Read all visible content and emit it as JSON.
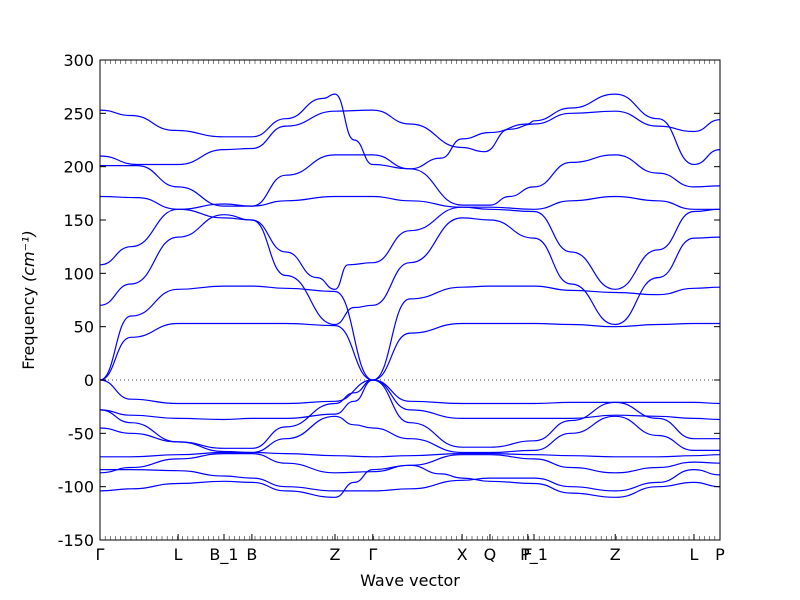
{
  "chart_data": {
    "type": "line",
    "title": "",
    "xlabel": "Wave vector",
    "ylabel": "Frequency ",
    "ylabel_unit": "(cm⁻¹)",
    "ylim": [
      -150,
      300
    ],
    "yticks": [
      300,
      250,
      200,
      150,
      100,
      50,
      0,
      -50,
      -100,
      -150
    ],
    "xlim": [
      0,
      1
    ],
    "xticks": [
      {
        "label": "Γ",
        "x": 0.0
      },
      {
        "label": "L",
        "x": 0.126
      },
      {
        "label": "B_1",
        "x": 0.2
      },
      {
        "label": "B",
        "x": 0.245
      },
      {
        "label": "Z",
        "x": 0.379
      },
      {
        "label": "Γ",
        "x": 0.44
      },
      {
        "label": "X",
        "x": 0.584
      },
      {
        "label": "Q",
        "x": 0.629
      },
      {
        "label": "F",
        "x": 0.69
      },
      {
        "label": "P_1",
        "x": 0.7
      },
      {
        "label": "Z",
        "x": 0.831
      },
      {
        "label": "L",
        "x": 0.958
      },
      {
        "label": "P",
        "x": 1.0
      }
    ],
    "zero_line": {
      "y": 0,
      "style": "dotted"
    },
    "series": [
      {
        "points": [
          [
            0,
            253
          ],
          [
            0.05,
            248
          ],
          [
            0.12,
            234
          ],
          [
            0.2,
            228
          ],
          [
            0.245,
            228
          ],
          [
            0.3,
            245
          ],
          [
            0.36,
            264
          ],
          [
            0.379,
            268
          ],
          [
            0.41,
            225
          ],
          [
            0.44,
            202
          ],
          [
            0.5,
            198
          ],
          [
            0.55,
            208
          ],
          [
            0.584,
            226
          ],
          [
            0.629,
            232
          ],
          [
            0.69,
            240
          ],
          [
            0.7,
            243
          ],
          [
            0.76,
            255
          ],
          [
            0.831,
            268
          ],
          [
            0.9,
            245
          ],
          [
            0.958,
            202
          ],
          [
            1.0,
            216
          ]
        ]
      },
      {
        "points": [
          [
            0,
            210
          ],
          [
            0.06,
            202
          ],
          [
            0.126,
            202
          ],
          [
            0.2,
            216
          ],
          [
            0.245,
            217
          ],
          [
            0.3,
            238
          ],
          [
            0.379,
            252
          ],
          [
            0.44,
            253
          ],
          [
            0.5,
            240
          ],
          [
            0.584,
            218
          ],
          [
            0.62,
            214
          ],
          [
            0.66,
            235
          ],
          [
            0.7,
            240
          ],
          [
            0.76,
            250
          ],
          [
            0.831,
            252
          ],
          [
            0.9,
            238
          ],
          [
            0.958,
            233
          ],
          [
            1.0,
            244
          ]
        ]
      },
      {
        "points": [
          [
            0,
            201
          ],
          [
            0.06,
            201
          ],
          [
            0.126,
            181
          ],
          [
            0.2,
            163
          ],
          [
            0.245,
            163
          ],
          [
            0.3,
            192
          ],
          [
            0.379,
            211
          ],
          [
            0.44,
            211
          ],
          [
            0.5,
            198
          ],
          [
            0.584,
            164
          ],
          [
            0.629,
            164
          ],
          [
            0.66,
            172
          ],
          [
            0.7,
            181
          ],
          [
            0.76,
            204
          ],
          [
            0.831,
            211
          ],
          [
            0.9,
            194
          ],
          [
            0.958,
            181
          ],
          [
            1.0,
            182
          ]
        ]
      },
      {
        "points": [
          [
            0,
            172
          ],
          [
            0.06,
            171
          ],
          [
            0.126,
            160
          ],
          [
            0.2,
            165
          ],
          [
            0.245,
            163
          ],
          [
            0.3,
            168
          ],
          [
            0.379,
            172
          ],
          [
            0.44,
            172
          ],
          [
            0.5,
            168
          ],
          [
            0.584,
            162
          ],
          [
            0.629,
            162
          ],
          [
            0.7,
            160
          ],
          [
            0.76,
            168
          ],
          [
            0.831,
            172
          ],
          [
            0.9,
            168
          ],
          [
            0.958,
            160
          ],
          [
            1.0,
            160
          ]
        ]
      },
      {
        "points": [
          [
            0,
            108
          ],
          [
            0.05,
            125
          ],
          [
            0.126,
            160
          ],
          [
            0.2,
            152
          ],
          [
            0.245,
            150
          ],
          [
            0.3,
            120
          ],
          [
            0.35,
            96
          ],
          [
            0.379,
            85
          ],
          [
            0.4,
            108
          ],
          [
            0.44,
            110
          ],
          [
            0.5,
            140
          ],
          [
            0.584,
            162
          ],
          [
            0.629,
            160
          ],
          [
            0.7,
            158
          ],
          [
            0.76,
            120
          ],
          [
            0.831,
            85
          ],
          [
            0.9,
            122
          ],
          [
            0.958,
            158
          ],
          [
            1.0,
            160
          ]
        ]
      },
      {
        "points": [
          [
            0,
            70
          ],
          [
            0.05,
            90
          ],
          [
            0.126,
            134
          ],
          [
            0.2,
            155
          ],
          [
            0.245,
            150
          ],
          [
            0.3,
            98
          ],
          [
            0.379,
            52
          ],
          [
            0.41,
            68
          ],
          [
            0.44,
            70
          ],
          [
            0.5,
            110
          ],
          [
            0.584,
            152
          ],
          [
            0.629,
            150
          ],
          [
            0.7,
            133
          ],
          [
            0.76,
            90
          ],
          [
            0.831,
            52
          ],
          [
            0.9,
            96
          ],
          [
            0.958,
            133
          ],
          [
            1.0,
            134
          ]
        ]
      },
      {
        "points": [
          [
            0,
            0
          ],
          [
            0.05,
            60
          ],
          [
            0.126,
            85
          ],
          [
            0.2,
            88
          ],
          [
            0.245,
            88
          ],
          [
            0.3,
            86
          ],
          [
            0.379,
            83
          ],
          [
            0.44,
            0
          ],
          [
            0.5,
            76
          ],
          [
            0.584,
            87
          ],
          [
            0.629,
            88
          ],
          [
            0.7,
            88
          ],
          [
            0.76,
            84
          ],
          [
            0.831,
            82
          ],
          [
            0.9,
            80
          ],
          [
            0.958,
            86
          ],
          [
            1.0,
            87
          ]
        ]
      },
      {
        "points": [
          [
            0,
            0
          ],
          [
            0.05,
            40
          ],
          [
            0.126,
            53
          ],
          [
            0.2,
            53
          ],
          [
            0.245,
            53
          ],
          [
            0.3,
            53
          ],
          [
            0.379,
            51
          ],
          [
            0.44,
            0
          ],
          [
            0.5,
            44
          ],
          [
            0.584,
            53
          ],
          [
            0.629,
            53
          ],
          [
            0.7,
            53
          ],
          [
            0.76,
            52
          ],
          [
            0.831,
            50
          ],
          [
            0.9,
            52
          ],
          [
            0.958,
            53
          ],
          [
            1.0,
            53
          ]
        ]
      },
      {
        "points": [
          [
            0,
            0
          ],
          [
            0.05,
            -18
          ],
          [
            0.126,
            -22
          ],
          [
            0.2,
            -22
          ],
          [
            0.245,
            -22
          ],
          [
            0.3,
            -22
          ],
          [
            0.379,
            -20
          ],
          [
            0.44,
            0
          ],
          [
            0.5,
            -20
          ],
          [
            0.584,
            -22
          ],
          [
            0.629,
            -22
          ],
          [
            0.7,
            -22
          ],
          [
            0.76,
            -21
          ],
          [
            0.831,
            -21
          ],
          [
            0.9,
            -21
          ],
          [
            0.958,
            -21
          ],
          [
            1.0,
            -22
          ]
        ]
      },
      {
        "points": [
          [
            0,
            -28
          ],
          [
            0.05,
            -40
          ],
          [
            0.126,
            -58
          ],
          [
            0.2,
            -64
          ],
          [
            0.245,
            -64
          ],
          [
            0.3,
            -44
          ],
          [
            0.379,
            -22
          ],
          [
            0.41,
            -12
          ],
          [
            0.44,
            0
          ],
          [
            0.5,
            -40
          ],
          [
            0.584,
            -63
          ],
          [
            0.629,
            -63
          ],
          [
            0.7,
            -57
          ],
          [
            0.76,
            -38
          ],
          [
            0.831,
            -21
          ],
          [
            0.9,
            -36
          ],
          [
            0.958,
            -55
          ],
          [
            1.0,
            -55
          ]
        ]
      },
      {
        "points": [
          [
            0,
            -28
          ],
          [
            0.05,
            -33
          ],
          [
            0.126,
            -36
          ],
          [
            0.2,
            -37
          ],
          [
            0.245,
            -36
          ],
          [
            0.3,
            -36
          ],
          [
            0.379,
            -32
          ],
          [
            0.41,
            -20
          ],
          [
            0.44,
            0
          ],
          [
            0.5,
            -28
          ],
          [
            0.584,
            -36
          ],
          [
            0.629,
            -36
          ],
          [
            0.7,
            -36
          ],
          [
            0.76,
            -36
          ],
          [
            0.831,
            -33
          ],
          [
            0.9,
            -34
          ],
          [
            0.958,
            -36
          ],
          [
            1.0,
            -37
          ]
        ]
      },
      {
        "points": [
          [
            0,
            -45
          ],
          [
            0.05,
            -50
          ],
          [
            0.126,
            -58
          ],
          [
            0.2,
            -67
          ],
          [
            0.245,
            -68
          ],
          [
            0.3,
            -55
          ],
          [
            0.379,
            -34
          ],
          [
            0.41,
            -42
          ],
          [
            0.44,
            -45
          ],
          [
            0.5,
            -55
          ],
          [
            0.584,
            -68
          ],
          [
            0.629,
            -68
          ],
          [
            0.7,
            -66
          ],
          [
            0.76,
            -50
          ],
          [
            0.831,
            -34
          ],
          [
            0.9,
            -52
          ],
          [
            0.958,
            -66
          ],
          [
            1.0,
            -66
          ]
        ]
      },
      {
        "points": [
          [
            0,
            -72
          ],
          [
            0.05,
            -72
          ],
          [
            0.126,
            -70
          ],
          [
            0.2,
            -68
          ],
          [
            0.245,
            -68
          ],
          [
            0.3,
            -69
          ],
          [
            0.379,
            -71
          ],
          [
            0.44,
            -72
          ],
          [
            0.5,
            -71
          ],
          [
            0.584,
            -69
          ],
          [
            0.629,
            -69
          ],
          [
            0.7,
            -70
          ],
          [
            0.76,
            -71
          ],
          [
            0.831,
            -72
          ],
          [
            0.9,
            -72
          ],
          [
            0.958,
            -71
          ],
          [
            1.0,
            -70
          ]
        ]
      },
      {
        "points": [
          [
            0,
            -87
          ],
          [
            0.05,
            -82
          ],
          [
            0.126,
            -74
          ],
          [
            0.2,
            -69
          ],
          [
            0.245,
            -69
          ],
          [
            0.3,
            -78
          ],
          [
            0.379,
            -87
          ],
          [
            0.44,
            -86
          ],
          [
            0.5,
            -80
          ],
          [
            0.584,
            -70
          ],
          [
            0.629,
            -70
          ],
          [
            0.7,
            -74
          ],
          [
            0.76,
            -82
          ],
          [
            0.831,
            -87
          ],
          [
            0.9,
            -82
          ],
          [
            0.958,
            -77
          ],
          [
            1.0,
            -78
          ]
        ]
      },
      {
        "points": [
          [
            0,
            -84
          ],
          [
            0.05,
            -84
          ],
          [
            0.126,
            -85
          ],
          [
            0.2,
            -90
          ],
          [
            0.245,
            -92
          ],
          [
            0.3,
            -100
          ],
          [
            0.379,
            -104
          ],
          [
            0.44,
            -104
          ],
          [
            0.5,
            -102
          ],
          [
            0.584,
            -94
          ],
          [
            0.629,
            -92
          ],
          [
            0.7,
            -92
          ],
          [
            0.76,
            -100
          ],
          [
            0.831,
            -104
          ],
          [
            0.9,
            -96
          ],
          [
            0.958,
            -84
          ],
          [
            1.0,
            -89
          ]
        ]
      },
      {
        "points": [
          [
            0,
            -104
          ],
          [
            0.05,
            -102
          ],
          [
            0.126,
            -97
          ],
          [
            0.2,
            -95
          ],
          [
            0.245,
            -96
          ],
          [
            0.3,
            -104
          ],
          [
            0.379,
            -110
          ],
          [
            0.41,
            -96
          ],
          [
            0.44,
            -84
          ],
          [
            0.5,
            -80
          ],
          [
            0.55,
            -88
          ],
          [
            0.584,
            -92
          ],
          [
            0.629,
            -95
          ],
          [
            0.7,
            -97
          ],
          [
            0.76,
            -106
          ],
          [
            0.831,
            -110
          ],
          [
            0.9,
            -100
          ],
          [
            0.958,
            -96
          ],
          [
            1.0,
            -100
          ]
        ]
      }
    ]
  }
}
